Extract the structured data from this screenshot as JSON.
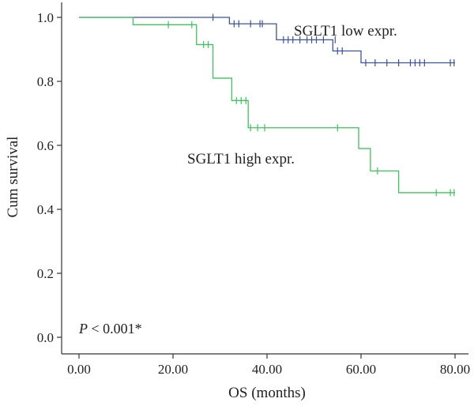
{
  "chart_data": {
    "type": "line",
    "subtype": "kaplan-meier-step",
    "xlabel": "OS (months)",
    "ylabel": "Cum survival",
    "xlim": [
      0,
      80
    ],
    "ylim": [
      0,
      1
    ],
    "xticks": [
      {
        "value": 0,
        "label": "0.00"
      },
      {
        "value": 20,
        "label": "20.00"
      },
      {
        "value": 40,
        "label": "40.00"
      },
      {
        "value": 60,
        "label": "60.00"
      },
      {
        "value": 80,
        "label": "80.00"
      }
    ],
    "yticks": [
      {
        "value": 0,
        "label": "0.0"
      },
      {
        "value": 0.2,
        "label": "0.2"
      },
      {
        "value": 0.4,
        "label": "0.4"
      },
      {
        "value": 0.6,
        "label": "0.6"
      },
      {
        "value": 0.8,
        "label": "0.8"
      },
      {
        "value": 1.0,
        "label": "1.0"
      }
    ],
    "grid": false,
    "legend": "none",
    "annotation": {
      "italic": "P",
      "rest": " < 0.001*"
    },
    "series": [
      {
        "name": "SGLT1 low expr.",
        "color": "#3d52a1",
        "steps": [
          [
            0,
            1.0
          ],
          [
            32,
            0.98
          ],
          [
            42,
            0.93
          ],
          [
            54,
            0.895
          ],
          [
            60,
            0.858
          ],
          [
            80,
            0.858
          ]
        ],
        "censored": [
          [
            28.5,
            1.0
          ],
          [
            33,
            0.98
          ],
          [
            34,
            0.98
          ],
          [
            36.5,
            0.98
          ],
          [
            38.5,
            0.98
          ],
          [
            39,
            0.98
          ],
          [
            43.5,
            0.93
          ],
          [
            44.5,
            0.93
          ],
          [
            45.5,
            0.93
          ],
          [
            47,
            0.93
          ],
          [
            48.5,
            0.93
          ],
          [
            49.5,
            0.93
          ],
          [
            50.5,
            0.93
          ],
          [
            52,
            0.93
          ],
          [
            54.5,
            0.93
          ],
          [
            55,
            0.895
          ],
          [
            56,
            0.895
          ],
          [
            61,
            0.858
          ],
          [
            63,
            0.858
          ],
          [
            65.5,
            0.858
          ],
          [
            68,
            0.858
          ],
          [
            70.5,
            0.858
          ],
          [
            71.5,
            0.858
          ],
          [
            72.5,
            0.858
          ],
          [
            73.5,
            0.858
          ],
          [
            79,
            0.858
          ],
          [
            79.8,
            0.858
          ]
        ]
      },
      {
        "name": "SGLT1 high expr.",
        "color": "#3ec25e",
        "steps": [
          [
            0,
            1.0
          ],
          [
            11.5,
            0.977
          ],
          [
            25,
            0.915
          ],
          [
            28.5,
            0.81
          ],
          [
            32.5,
            0.74
          ],
          [
            36,
            0.655
          ],
          [
            59.5,
            0.59
          ],
          [
            62,
            0.52
          ],
          [
            68,
            0.452
          ],
          [
            80,
            0.452
          ]
        ],
        "censored": [
          [
            19,
            0.977
          ],
          [
            24,
            0.977
          ],
          [
            26.5,
            0.915
          ],
          [
            27.5,
            0.915
          ],
          [
            33.5,
            0.74
          ],
          [
            34.5,
            0.74
          ],
          [
            35.5,
            0.74
          ],
          [
            36.5,
            0.655
          ],
          [
            38,
            0.655
          ],
          [
            39.5,
            0.655
          ],
          [
            55,
            0.655
          ],
          [
            63.5,
            0.52
          ],
          [
            76,
            0.452
          ],
          [
            79,
            0.452
          ],
          [
            79.8,
            0.452
          ]
        ]
      }
    ]
  }
}
